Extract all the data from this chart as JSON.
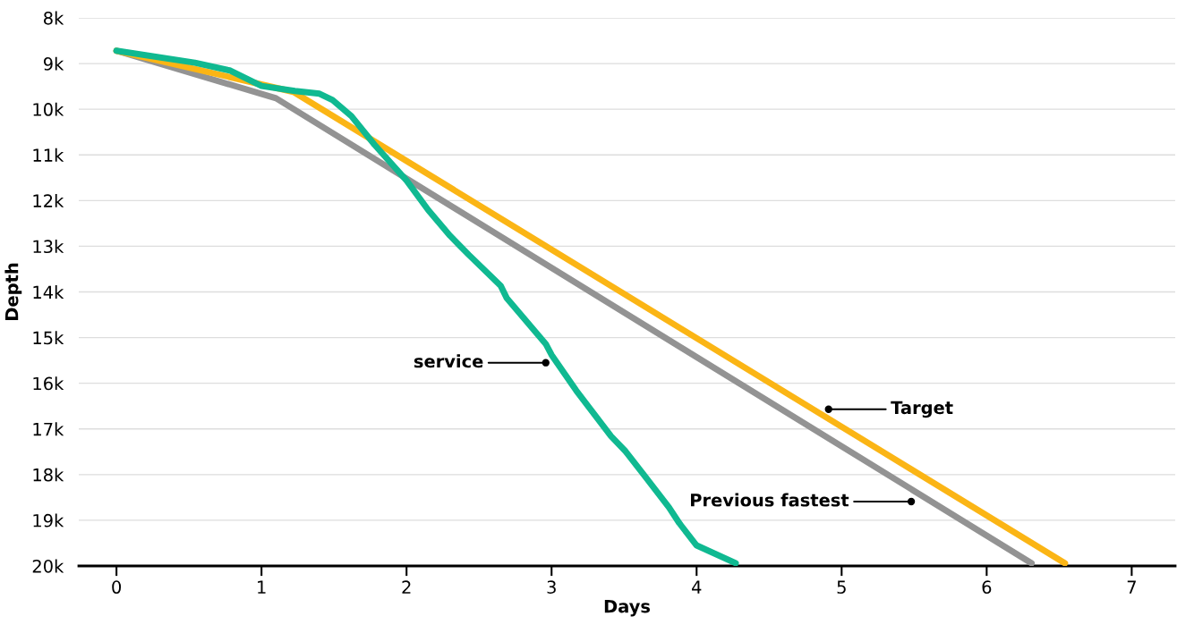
{
  "chart_data": {
    "type": "line",
    "xlabel": "Days",
    "ylabel": "Depth",
    "xlim": [
      -0.26,
      7.3
    ],
    "xticks": [
      0,
      1,
      2,
      3,
      4,
      5,
      6,
      7
    ],
    "ylim": [
      20000,
      8000
    ],
    "yticks": [
      {
        "value": 8000,
        "label": "8k"
      },
      {
        "value": 9000,
        "label": "9k"
      },
      {
        "value": 10000,
        "label": "10k"
      },
      {
        "value": 11000,
        "label": "11k"
      },
      {
        "value": 12000,
        "label": "12k"
      },
      {
        "value": 13000,
        "label": "13k"
      },
      {
        "value": 14000,
        "label": "14k"
      },
      {
        "value": 15000,
        "label": "15k"
      },
      {
        "value": 16000,
        "label": "16k"
      },
      {
        "value": 17000,
        "label": "17k"
      },
      {
        "value": 18000,
        "label": "18k"
      },
      {
        "value": 19000,
        "label": "19k"
      },
      {
        "value": 20000,
        "label": "20k"
      }
    ],
    "grid": "y",
    "legend": false,
    "marker": "none",
    "line_style": "solid",
    "series": [
      {
        "color": "#939393",
        "x": [
          0,
          1.1,
          6.31
        ],
        "values": [
          8720,
          9760,
          19940
        ]
      },
      {
        "color": "#fbb515",
        "x": [
          0,
          1.22,
          6.54
        ],
        "values": [
          8720,
          9620,
          19940
        ]
      },
      {
        "color": "#10b991",
        "x": [
          0,
          0.54,
          0.78,
          1.0,
          1.23,
          1.4,
          1.49,
          1.62,
          1.78,
          2.0,
          2.15,
          2.3,
          2.43,
          2.65,
          2.69,
          2.96,
          3.0,
          3.17,
          3.41,
          3.51,
          3.64,
          3.81,
          3.88,
          4.0,
          4.27
        ],
        "values": [
          8720,
          8980,
          9150,
          9490,
          9600,
          9660,
          9800,
          10150,
          10780,
          11560,
          12210,
          12770,
          13190,
          13870,
          14130,
          15140,
          15380,
          16160,
          17160,
          17490,
          18020,
          18720,
          19060,
          19550,
          19940
        ]
      }
    ],
    "annotations": [
      {
        "text": "service",
        "x": 2.96,
        "y": 15550
      },
      {
        "text": "Target",
        "x": 4.91,
        "y": 16570
      },
      {
        "text": "Previous fastest",
        "x": 5.48,
        "y": 18590
      }
    ]
  }
}
